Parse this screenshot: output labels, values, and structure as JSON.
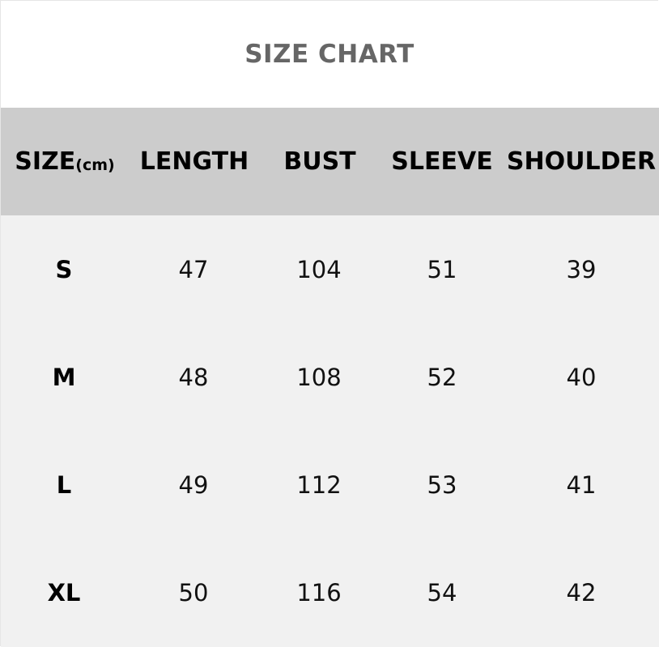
{
  "title": "SIZE CHART",
  "headers": {
    "size": "SIZE",
    "size_unit": "(cm)",
    "length": "LENGTH",
    "bust": "BUST",
    "sleeve": "SLEEVE",
    "shoulder": "SHOULDER"
  },
  "rows": [
    {
      "size": "S",
      "length": "47",
      "bust": "104",
      "sleeve": "51",
      "shoulder": "39"
    },
    {
      "size": "M",
      "length": "48",
      "bust": "108",
      "sleeve": "52",
      "shoulder": "40"
    },
    {
      "size": "L",
      "length": "49",
      "bust": "112",
      "sleeve": "53",
      "shoulder": "41"
    },
    {
      "size": "XL",
      "length": "50",
      "bust": "116",
      "sleeve": "54",
      "shoulder": "42"
    }
  ],
  "colors": {
    "header_bg": "#cccccc",
    "body_bg": "#f1f1f1",
    "title": "#666666"
  }
}
